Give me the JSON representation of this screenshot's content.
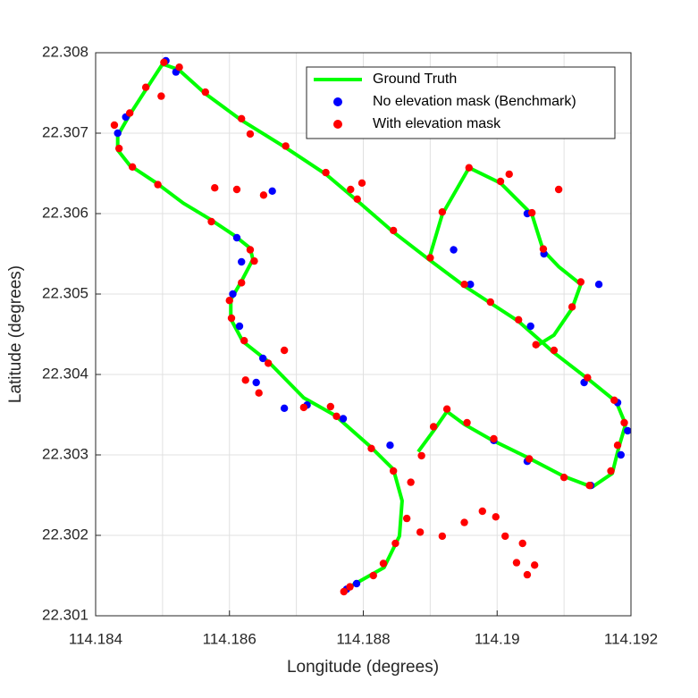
{
  "chart_data": {
    "type": "scatter",
    "xlabel": "Longitude (degrees)",
    "ylabel": "Latitude (degrees)",
    "xlim": [
      114.184,
      114.192
    ],
    "xticks": [
      114.184,
      114.186,
      114.188,
      114.19,
      114.192
    ],
    "x_minor_grid": [
      114.185,
      114.187,
      114.189,
      114.191
    ],
    "ylim": [
      22.301,
      22.308
    ],
    "yticks": [
      22.301,
      22.302,
      22.303,
      22.304,
      22.305,
      22.306,
      22.307,
      22.308
    ],
    "grid": true,
    "legend": "upper right",
    "series": [
      {
        "name": "Ground Truth",
        "color": "#00ff00",
        "style": "line",
        "x": [
          114.18771,
          114.18831,
          114.18854,
          114.18858,
          114.18845,
          114.18811,
          114.18758,
          114.18711,
          114.18658,
          114.1862,
          114.18602,
          114.18602,
          114.18618,
          114.18635,
          114.18631,
          114.18607,
          114.18571,
          114.18531,
          114.18491,
          114.18451,
          114.18433,
          114.18433,
          114.18451,
          114.18475,
          114.185,
          114.18524,
          114.18564,
          114.18618,
          114.18684,
          114.18744,
          114.18791,
          114.18845,
          114.18898,
          114.18951,
          114.19032,
          114.19085,
          114.19138,
          114.19178,
          114.19192,
          114.19182,
          114.19172,
          114.19142,
          114.19098,
          114.19045,
          114.18991,
          114.18951,
          114.18925,
          114.18905,
          114.18882,
          null,
          114.18898,
          114.18918,
          114.18958,
          114.19005,
          114.19052,
          114.19069,
          114.19092,
          114.19125,
          114.19112,
          114.19085,
          114.19056
        ],
        "values": [
          22.30132,
          22.3016,
          22.30199,
          22.30243,
          22.30282,
          22.3031,
          22.30349,
          22.30371,
          22.30416,
          22.30441,
          22.30469,
          22.30493,
          22.30516,
          22.30543,
          22.30557,
          22.30573,
          22.30593,
          22.30613,
          22.30638,
          22.3066,
          22.30679,
          22.30697,
          22.30723,
          22.30754,
          22.30786,
          22.30779,
          22.30749,
          22.30716,
          22.30682,
          22.30649,
          22.30616,
          22.30577,
          22.30543,
          22.3051,
          22.30466,
          22.30427,
          22.30393,
          22.30366,
          22.30338,
          22.3031,
          22.30277,
          22.3026,
          22.30274,
          22.30297,
          22.30319,
          22.30338,
          22.30354,
          22.3033,
          22.30304,
          null,
          22.30543,
          22.30599,
          22.30657,
          22.30638,
          22.30599,
          22.30554,
          22.30534,
          22.30512,
          22.30482,
          22.30449,
          22.30434
        ]
      },
      {
        "name": "No elevation mask (Benchmark)",
        "color": "#0000ff",
        "style": "dots",
        "x": [
          114.18433,
          114.18445,
          114.18505,
          114.1852,
          114.18611,
          114.18618,
          114.18605,
          114.18615,
          114.1865,
          114.1864,
          114.18716,
          114.1877,
          114.1884,
          114.18775,
          114.1879,
          114.18935,
          114.1896,
          114.1905,
          114.1913,
          114.1918,
          114.19195,
          114.19185,
          114.1914,
          114.19045,
          114.18995,
          114.19152,
          114.1907,
          114.19045,
          114.18664,
          114.18682
        ],
        "values": [
          22.307,
          22.3072,
          22.3079,
          22.30776,
          22.3057,
          22.3054,
          22.305,
          22.3046,
          22.3042,
          22.3039,
          22.30362,
          22.30345,
          22.30312,
          22.30133,
          22.3014,
          22.30555,
          22.30512,
          22.3046,
          22.3039,
          22.30365,
          22.3033,
          22.303,
          22.30262,
          22.30292,
          22.30318,
          22.30512,
          22.3055,
          22.306,
          22.30628,
          22.30358
        ]
      },
      {
        "name": "With elevation mask",
        "color": "#ff0000",
        "style": "dots",
        "x": [
          114.18771,
          114.1878,
          114.18815,
          114.1883,
          114.18848,
          114.18865,
          114.18885,
          114.18918,
          114.18951,
          114.18978,
          114.18998,
          114.19012,
          114.19029,
          114.19045,
          114.19056,
          114.19038,
          114.18871,
          114.18887,
          114.18905,
          114.18925,
          114.18955,
          114.18995,
          114.19048,
          114.191,
          114.19138,
          114.1917,
          114.1918,
          114.1919,
          114.19175,
          114.19135,
          114.19085,
          114.19058,
          114.19032,
          114.1899,
          114.18951,
          114.189,
          114.18918,
          114.18958,
          114.19005,
          114.19018,
          114.19052,
          114.19092,
          114.19069,
          114.19125,
          114.19112,
          114.18845,
          114.18798,
          114.18781,
          114.18791,
          114.18744,
          114.18684,
          114.18631,
          114.18618,
          114.18564,
          114.18525,
          114.18502,
          114.18498,
          114.18475,
          114.18451,
          114.18428,
          114.18435,
          114.18455,
          114.18493,
          114.18578,
          114.18611,
          114.18651,
          114.18573,
          114.18631,
          114.18637,
          114.18618,
          114.186,
          114.18603,
          114.18622,
          114.18658,
          114.18682,
          114.18624,
          114.18644,
          114.18711,
          114.18751,
          114.1876,
          114.18812,
          114.18845
        ],
        "values": [
          22.3013,
          22.30136,
          22.3015,
          22.30165,
          22.3019,
          22.30221,
          22.30204,
          22.30199,
          22.30216,
          22.3023,
          22.30223,
          22.30199,
          22.30166,
          22.30151,
          22.30163,
          22.3019,
          22.30266,
          22.30299,
          22.30335,
          22.30357,
          22.3034,
          22.3032,
          22.30295,
          22.30272,
          22.30262,
          22.3028,
          22.30312,
          22.3034,
          22.30368,
          22.30396,
          22.3043,
          22.30437,
          22.30468,
          22.3049,
          22.30512,
          22.30545,
          22.30602,
          22.30657,
          22.3064,
          22.30649,
          22.30601,
          22.3063,
          22.30556,
          22.30515,
          22.30484,
          22.30579,
          22.30638,
          22.3063,
          22.30618,
          22.30651,
          22.30684,
          22.30699,
          22.30718,
          22.30751,
          22.30782,
          22.30788,
          22.30746,
          22.30757,
          22.30725,
          22.3071,
          22.30681,
          22.30658,
          22.30636,
          22.30632,
          22.3063,
          22.30623,
          22.3059,
          22.30555,
          22.30541,
          22.30514,
          22.30492,
          22.3047,
          22.30442,
          22.30414,
          22.3043,
          22.30393,
          22.30377,
          22.30359,
          22.3036,
          22.30348,
          22.30308,
          22.3028
        ]
      }
    ]
  }
}
